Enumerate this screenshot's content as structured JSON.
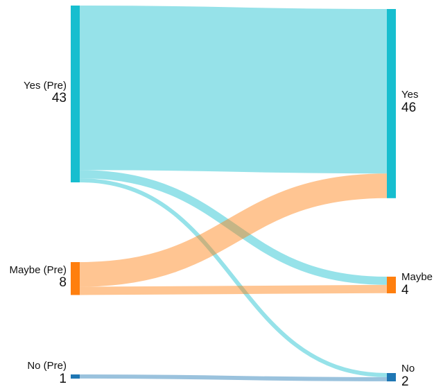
{
  "chart_data": {
    "type": "sankey",
    "title": "",
    "colors": {
      "yes": "#17becf",
      "maybe": "#ff7f0e",
      "no": "#1f77b4"
    },
    "nodes": [
      {
        "id": "yes_pre",
        "label": "Yes (Pre)",
        "value": 43,
        "side": "left",
        "color": "yes"
      },
      {
        "id": "maybe_pre",
        "label": "Maybe (Pre)",
        "value": 8,
        "side": "left",
        "color": "maybe"
      },
      {
        "id": "no_pre",
        "label": "No (Pre)",
        "value": 1,
        "side": "left",
        "color": "no"
      },
      {
        "id": "yes_post",
        "label": "Yes",
        "value": 46,
        "side": "right",
        "color": "yes"
      },
      {
        "id": "maybe_post",
        "label": "Maybe",
        "value": 4,
        "side": "right",
        "color": "maybe"
      },
      {
        "id": "no_post",
        "label": "No",
        "value": 2,
        "side": "right",
        "color": "no"
      }
    ],
    "links": [
      {
        "source": "yes_pre",
        "target": "yes_post",
        "value": 40
      },
      {
        "source": "yes_pre",
        "target": "maybe_post",
        "value": 2
      },
      {
        "source": "yes_pre",
        "target": "no_post",
        "value": 1
      },
      {
        "source": "maybe_pre",
        "target": "yes_post",
        "value": 6
      },
      {
        "source": "maybe_pre",
        "target": "maybe_post",
        "value": 2
      },
      {
        "source": "no_pre",
        "target": "no_post",
        "value": 1
      }
    ]
  }
}
